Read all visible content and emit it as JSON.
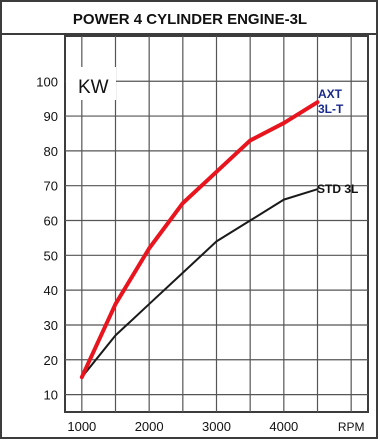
{
  "chart_data": {
    "type": "line",
    "title": "POWER 4 CYLINDER ENGINE-3L",
    "ylabel": "KW",
    "xlabel": "RPM",
    "xlim": [
      750,
      5250
    ],
    "ylim": [
      5,
      113
    ],
    "x_ticks": [
      1000,
      1500,
      2000,
      2500,
      3000,
      3500,
      4000,
      4500,
      5000
    ],
    "x_tick_labels": [
      "1000",
      "",
      "2000",
      "",
      "3000",
      "",
      "4000",
      "",
      "RPM"
    ],
    "y_ticks": [
      10,
      20,
      30,
      40,
      50,
      60,
      70,
      80,
      90,
      100
    ],
    "y_tick_labels": [
      "10",
      "20",
      "30",
      "40",
      "50",
      "60",
      "70",
      "80",
      "90",
      "100"
    ],
    "grid": true,
    "series": [
      {
        "name": "STD 3L",
        "color": "#1a1a1a",
        "x": [
          1000,
          1500,
          2000,
          2500,
          3000,
          3500,
          4000,
          4500
        ],
        "y": [
          15,
          27,
          36,
          45,
          54,
          60,
          66,
          69
        ]
      },
      {
        "name_lines": [
          "AXT",
          "3L-T"
        ],
        "color": "#e8141e",
        "label_color": "#1a2a8c",
        "x": [
          1000,
          1500,
          2000,
          2500,
          3000,
          3500,
          4000,
          4500
        ],
        "y": [
          15,
          36,
          52,
          65,
          74,
          83,
          88,
          94
        ]
      }
    ]
  }
}
